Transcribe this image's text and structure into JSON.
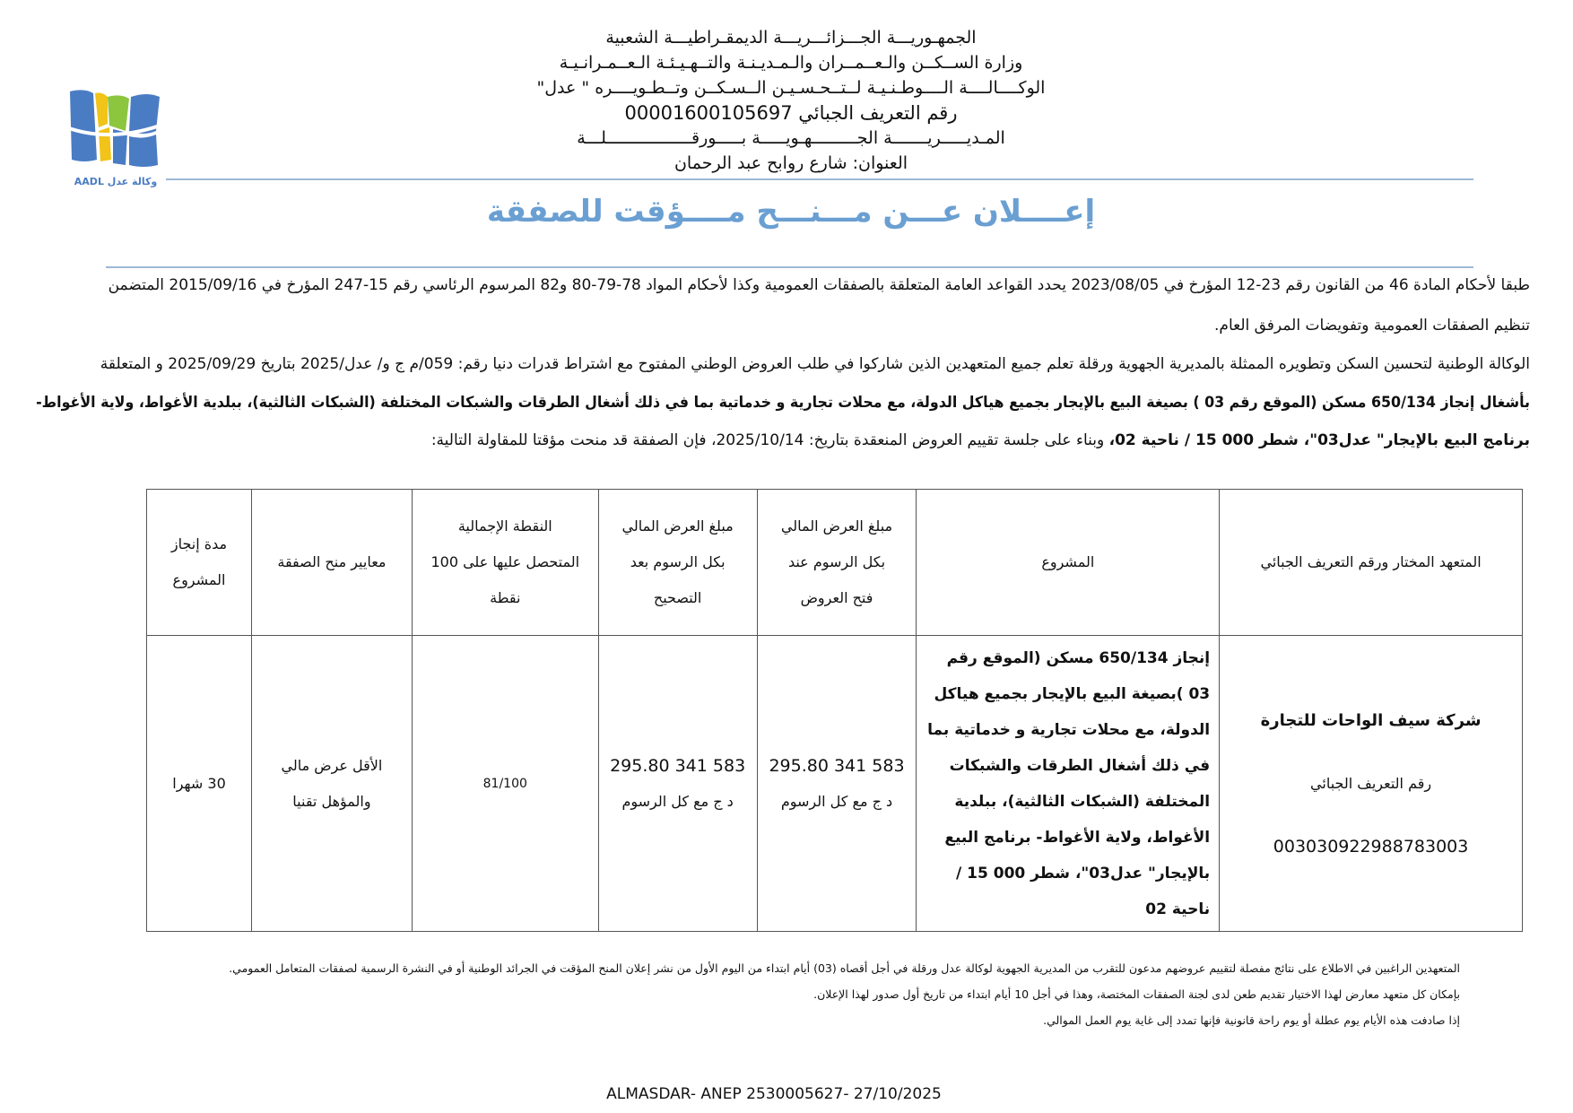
{
  "header": {
    "line1": "الجمهـوريـــة الجـــزائـــريـــة الديمقـراطيـــة الشعبية",
    "line2": "وزارة الســكــن والـعــمــران والـمـديـنـة والتــهـيـئـة الـعــمـرانـيـة",
    "line3": "الوكــــالــــة الــــوطـنـيـة لــتــحـسـيـن الــسـكــن وتــطـويــــره \" عدل\"",
    "line4": "رقم التعريف الجبائي 00001600105697",
    "line5": "المـديـــــريـــــــة الجـــــــــهـويـــــة بـــــورقـــــــــــــــــلـــة",
    "line6": "العنوان: شارع روابح عبد الرحمان"
  },
  "logo": {
    "text": "AADL وكالة عدل",
    "colors": [
      "#4a7cc4",
      "#f2c318",
      "#8cc63f"
    ]
  },
  "title": "إعــــلان عـــن مـــنـــح مــــؤقت للصفقة",
  "colors": {
    "title": "#6a9fd2",
    "rule": "#9db8d4"
  },
  "body": {
    "p1_line1": "طبقا لأحكام المادة 46 من القانون رقم 23-12 المؤرخ في 2023/08/05 يحدد القواعد العامة المتعلقة بالصفقات العمومية وكذا لأحكام المواد 78-79-80 و82 المرسوم الرئاسي رقم 15-247 المؤرخ في 2015/09/16 المتضمن",
    "p1_line2": "تنظيم الصفقات العمومية وتفويضات المرفق العام.",
    "p2_line1": "الوكالة الوطنية لتحسين السكن وتطويره الممثلة بالمديرية الجهوية ورقلة تعلم جميع المتعهدين الذين شاركوا في طلب العروض الوطني المفتوح مع اشتراط قدرات دنيا رقم: 059/م ج و/ عدل/2025 بتاريخ 2025/09/29 و المتعلقة",
    "p2_line2": "بأشغال إنجاز 650/134 مسكن (الموقع رقم 03 ) بصيغة البيع بالإيجار بجميع هياكل الدولة، مع محلات تجارية و خدماتية بما في ذلك أشغال الطرقات والشبكات المختلفة (الشبكات الثالثية)، ببلدية الأغواط، ولاية الأغواط-",
    "p2_line3_bold": "برنامج البيع بالإيجار\" عدل03\"، شطر 000 15 / ناحية 02،",
    "p2_line3_rest": " وبناء على جلسة تقييم العروض المنعقدة بتاريخ: 2025/10/14، فإن الصفقة قد منحت مؤقتا للمقاولة التالية:"
  },
  "table": {
    "headers": {
      "bidder": "المتعهد المختار ورقم التعريف الجبائي",
      "project": "المشروع",
      "amount_open": [
        "مبلغ العرض المالي",
        "بكل الرسوم عند",
        "فتح العروض"
      ],
      "amount_corrected": [
        "مبلغ العرض المالي",
        "بكل الرسوم بعد",
        "التصحيح"
      ],
      "score": [
        "النقطة الإجمالية",
        "المتحصل عليها على 100",
        "نقطة"
      ],
      "criteria": "معايير منح الصفقة",
      "duration": [
        "مدة إنجاز",
        "المشروع"
      ]
    },
    "row": {
      "bidder_name": "شركة سيف الواحات للتجارة",
      "tax_id_label": "رقم التعريف الجبائي",
      "tax_id": "003030922988783003",
      "project": "إنجاز 650/134 مسكن (الموقع رقم 03 )بصيغة البيع بالإيجار بجميع هياكل الدولة، مع محلات تجارية و خدماتية بما في ذلك أشغال الطرقات والشبكات المختلفة (الشبكات الثالثية)، ببلدية الأغواط، ولاية الأغواط- برنامج البيع بالإيجار\" عدل03\"، شطر 000 15 / ناحية 02",
      "amount_open": "583 341 295.80",
      "amount_open_unit": "د ج مع كل الرسوم",
      "amount_corrected": "583 341 295.80",
      "amount_corrected_unit": "د ج مع كل الرسوم",
      "score": "81/100",
      "criteria": [
        "الأقل عرض مالي",
        "والمؤهل تقنيا"
      ],
      "duration": "30 شهرا"
    }
  },
  "notes": [
    "المتعهدين الراغبين في الاطلاع على نتائج مفصلة لتقييم عروضهم مدعون للتقرب من المديرية الجهوية لوكالة عدل ورقلة في أجل أقصاه (03) أيام ابتداء من اليوم الأول من نشر إعلان المنح المؤقت في الجرائد الوطنية أو في النشرة الرسمية لصفقات المتعامل العمومي.",
    "بإمكان كل متعهد معارض لهذا الاختيار تقديم طعن لدى لجنة الصفقات المختصة، وهذا في أجل 10 أيام ابتداء من تاريخ أول صدور لهذا الإعلان.",
    "إذا صادفت هذه الأيام يوم عطلة أو يوم راحة قانونية فإنها تمدد إلى غاية يوم العمل الموالي."
  ],
  "footer": "ALMASDAR- ANEP 2530005627- 27/10/2025"
}
